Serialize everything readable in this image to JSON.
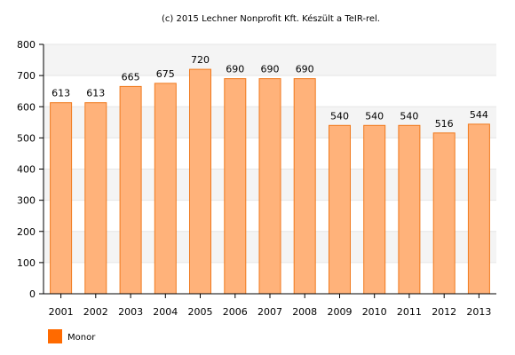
{
  "credit": "(c) 2015 Lechner Nonprofit Kft. Készült a TeIR-rel.",
  "colors": {
    "bar_fill": "#ffb27a",
    "bar_stroke": "#f07a1e",
    "legend_swatch": "#ff6a00",
    "band": "#f4f4f4",
    "grid": "#e6e6e6",
    "axis": "#000000"
  },
  "legend": {
    "placement": "bottom-left",
    "label": "Monor"
  },
  "chart_data": {
    "type": "bar",
    "categories": [
      "2001",
      "2002",
      "2003",
      "2004",
      "2005",
      "2006",
      "2007",
      "2008",
      "2009",
      "2010",
      "2011",
      "2012",
      "2013"
    ],
    "series": [
      {
        "name": "Monor",
        "values": [
          613,
          613,
          665,
          675,
          720,
          690,
          690,
          690,
          540,
          540,
          540,
          516,
          544
        ]
      }
    ],
    "data_labels": [
      "613",
      "613",
      "665",
      "675",
      "720",
      "690",
      "690",
      "690",
      "540",
      "540",
      "540",
      "516",
      "544"
    ],
    "ylim": [
      0,
      800
    ],
    "yticks": [
      0,
      100,
      200,
      300,
      400,
      500,
      600,
      700,
      800
    ],
    "ytick_labels": [
      "0",
      "100",
      "200",
      "300",
      "400",
      "500",
      "600",
      "700",
      "800"
    ],
    "grid": true,
    "alternating_bands": true,
    "xlabel": "",
    "ylabel": ""
  }
}
